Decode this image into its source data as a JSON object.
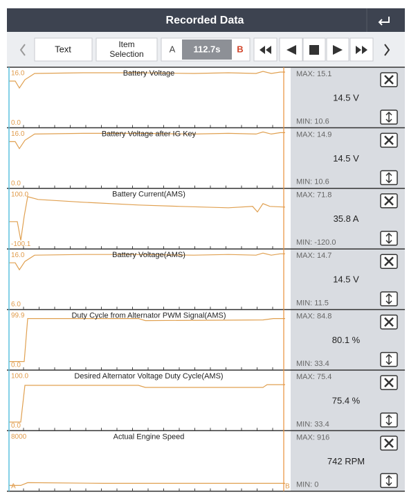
{
  "header": {
    "title": "Recorded Data"
  },
  "toolbar": {
    "text_button": "Text",
    "item_selection": [
      "Item",
      "Selection"
    ],
    "marker_a": "A",
    "time": "112.7s",
    "marker_b": "B"
  },
  "panels": [
    {
      "title": "Battery Voltage",
      "top": "16.0",
      "bottom": "0.0",
      "max": "MAX: 15.1",
      "value": "14.5 V",
      "min": "MIN: 10.6"
    },
    {
      "title": "Battery Voltage after IG Key",
      "top": "16.0",
      "bottom": "0.0",
      "max": "MAX: 14.9",
      "value": "14.5 V",
      "min": "MIN: 10.6"
    },
    {
      "title": "Battery Current(AMS)",
      "top": "100.0",
      "bottom": "-100.1",
      "max": "MAX: 71.8",
      "value": "35.8 A",
      "min": "MIN: -120.0"
    },
    {
      "title": "Battery Voltage(AMS)",
      "top": "16.0",
      "bottom": "6.0",
      "max": "MAX: 14.7",
      "value": "14.5 V",
      "min": "MIN: 11.5"
    },
    {
      "title": "Duty Cycle from Alternator PWM Signal(AMS)",
      "top": "99.9",
      "bottom": "0.0",
      "max": "MAX: 84.8",
      "value": "80.1 %",
      "min": "MIN: 33.4"
    },
    {
      "title": "Desired Alternator Voltage Duty Cycle(AMS)",
      "top": "100.0",
      "bottom": "0.0",
      "max": "MAX: 75.4",
      "value": "75.4 %",
      "min": "MIN: 33.4"
    },
    {
      "title": "Actual Engine Speed",
      "top": "8000",
      "bottom": "A",
      "max": "MAX: 916",
      "value": "742 RPM",
      "min": "MIN: 0",
      "cursor_b": "B"
    }
  ]
}
